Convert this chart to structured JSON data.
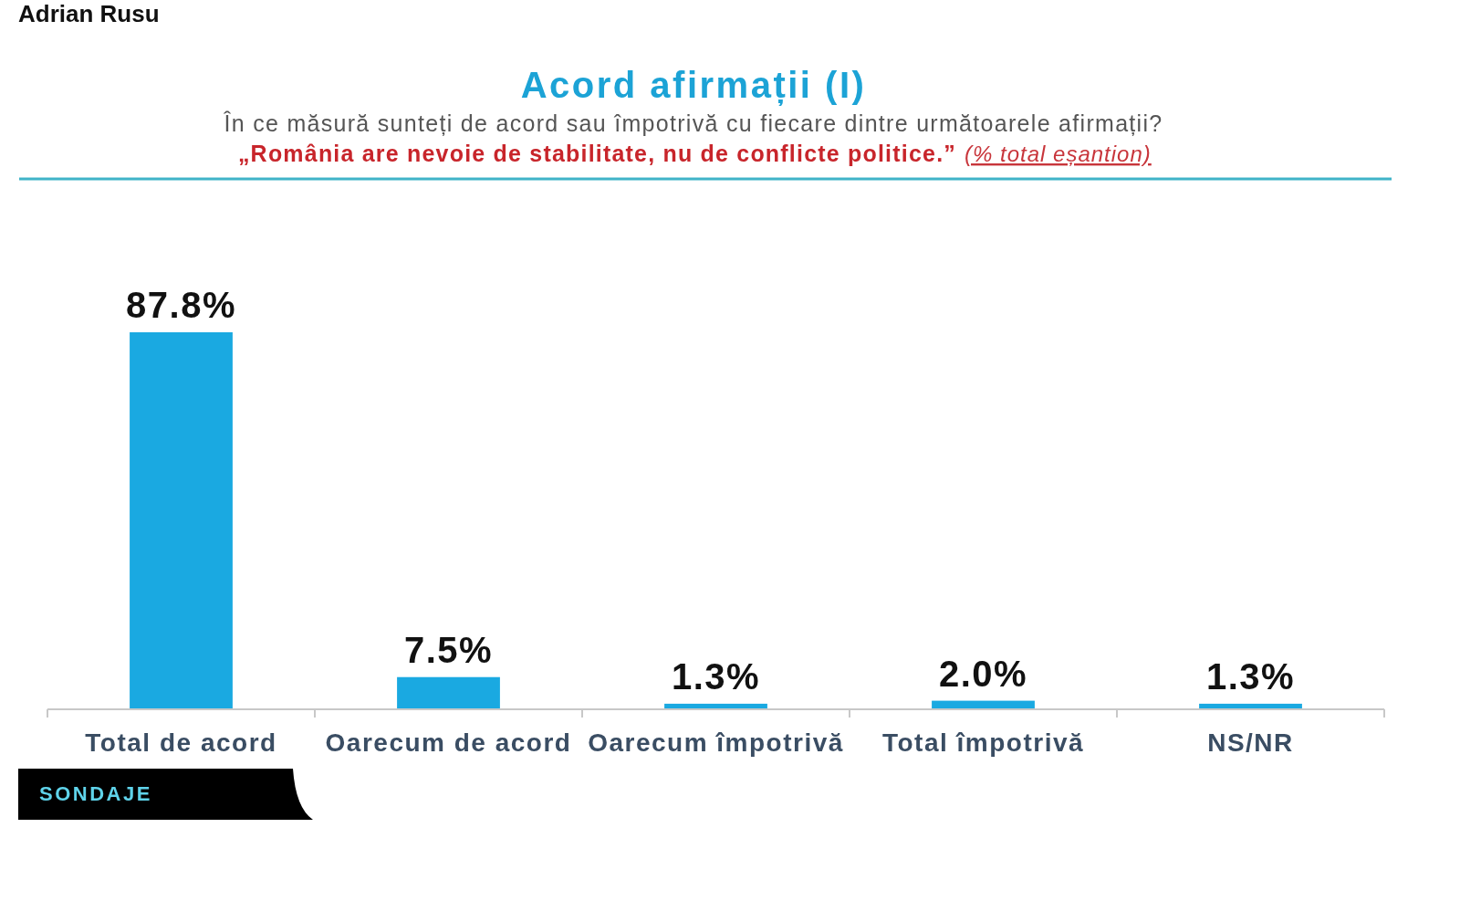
{
  "chart_data": {
    "type": "bar",
    "title": "Acord afirmații (I)",
    "subtitle": "În ce măsură sunteți de acord sau împotrivă cu fiecare dintre următoarele afirmații?",
    "annotations": [
      "„România are nevoie de stabilitate, nu de conflicte politice.”",
      "(% total eșantion)",
      "SONDAJE",
      "Adrian Rusu"
    ],
    "categories": [
      "Total de acord",
      "Oarecum de acord",
      "Oarecum împotrivă",
      "Total împotrivă",
      "NS/NR"
    ],
    "values": [
      87.8,
      7.5,
      1.3,
      2.0,
      1.3
    ],
    "value_labels": [
      "87.8%",
      "7.5%",
      "1.3%",
      "2.0%",
      "1.3%"
    ],
    "color": "#1aa9e1",
    "tick_labels": "x"
  }
}
